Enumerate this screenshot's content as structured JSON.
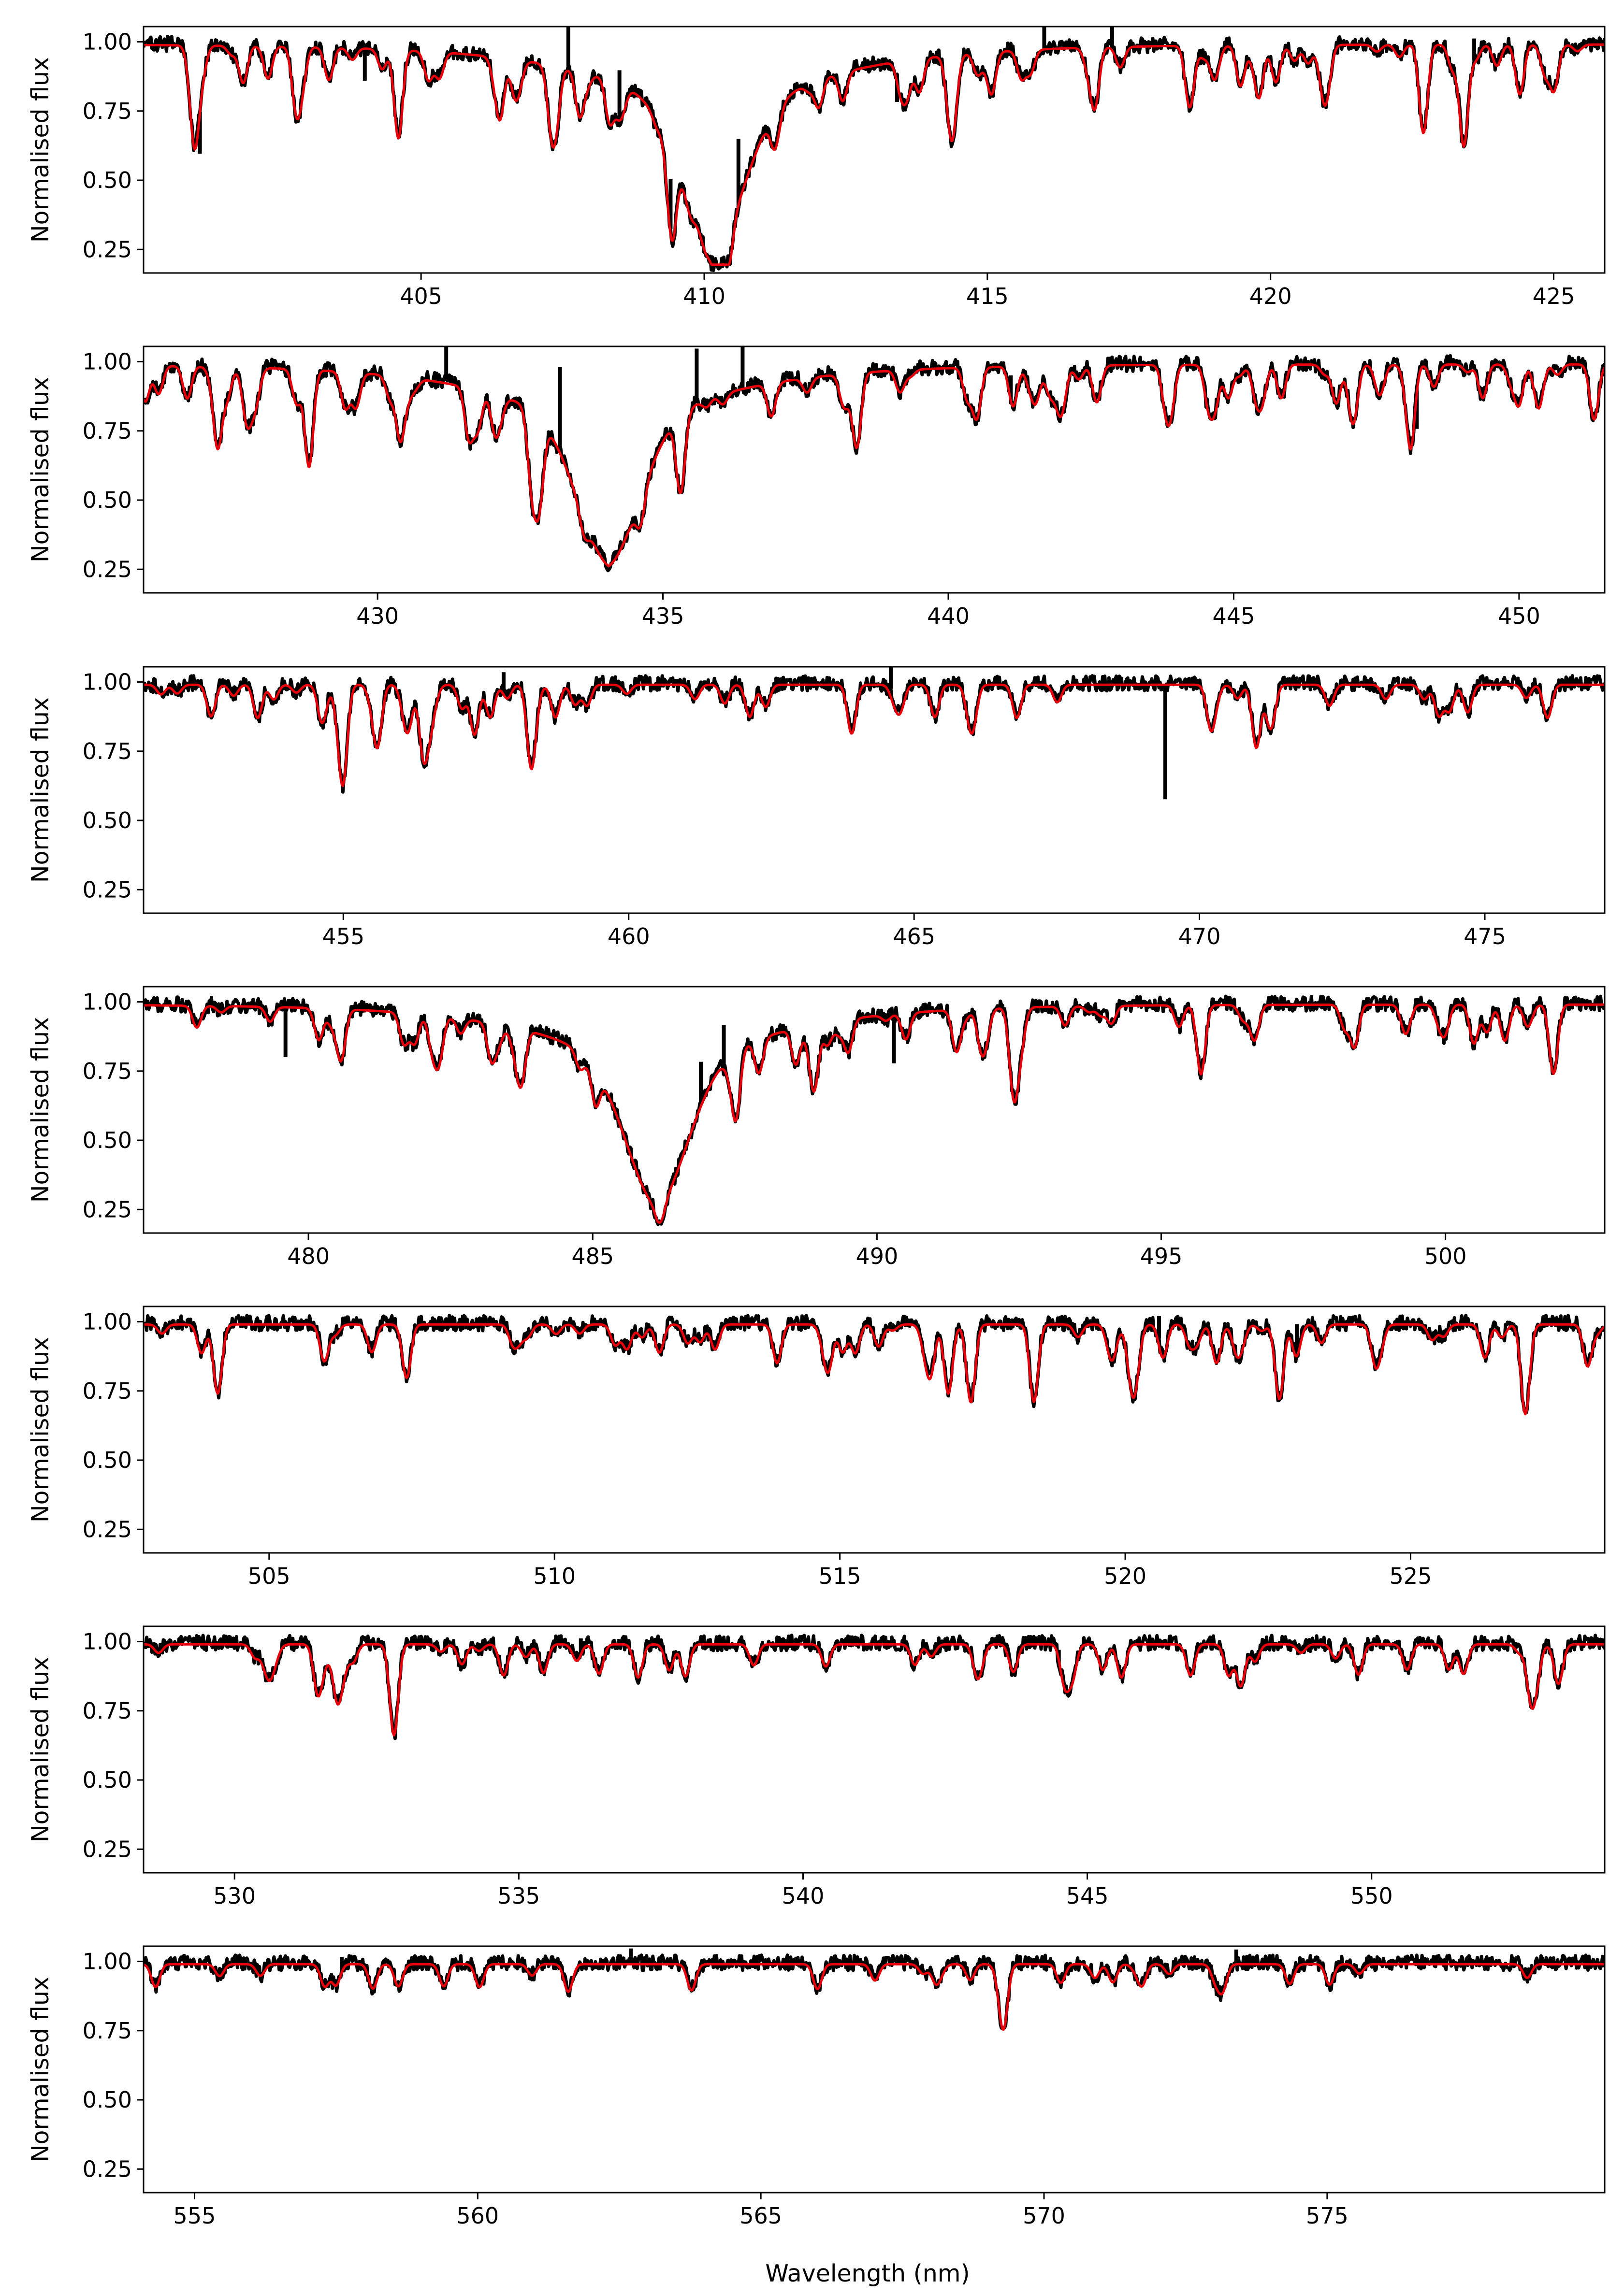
{
  "figure": {
    "xlabel": "Wavelength (nm)",
    "ylabel": "Normalised flux",
    "observed_color": "#000000",
    "model_color": "#e8000b"
  },
  "chart_data": [
    {
      "type": "line",
      "xlim": [
        400.1,
        425.9
      ],
      "ylim": [
        0.165,
        1.055
      ],
      "xticks": [
        405,
        410,
        415,
        420,
        425
      ],
      "yticks": [
        0.25,
        0.5,
        0.75,
        1.0
      ],
      "ylabel": "Normalised flux",
      "xlabel": "",
      "series": [
        {
          "color": "#000000",
          "width": 7,
          "role": "observed"
        },
        {
          "color": "#e8000b",
          "width": 5,
          "role": "model"
        }
      ],
      "balmer": {
        "center": 410.17,
        "depth": 0.78,
        "width": 0.55,
        "wing": 0.32,
        "wing_width": 3.6
      },
      "lines": [
        [
          401.0,
          0.22
        ],
        [
          402.8,
          0.17
        ],
        [
          404.6,
          0.32
        ],
        [
          406.4,
          0.2
        ],
        [
          407.8,
          0.16
        ],
        [
          413.8,
          0.12
        ],
        [
          414.4,
          0.2
        ],
        [
          415.6,
          0.1
        ],
        [
          416.9,
          0.12
        ],
        [
          418.6,
          0.1
        ],
        [
          419.8,
          0.18
        ],
        [
          421.0,
          0.14
        ],
        [
          422.7,
          0.32
        ],
        [
          423.4,
          0.15
        ],
        [
          424.4,
          0.18
        ],
        [
          425.0,
          0.14
        ]
      ],
      "spikes": [
        [
          401.1,
          0.15
        ],
        [
          404.0,
          0.1
        ],
        [
          407.6,
          -0.25
        ],
        [
          408.5,
          -0.2
        ],
        [
          409.4,
          -0.18
        ],
        [
          410.6,
          -0.25
        ],
        [
          413.4,
          0.1
        ],
        [
          416.0,
          -0.15
        ],
        [
          417.2,
          -0.12
        ],
        [
          423.6,
          -0.08
        ]
      ],
      "density": 1.0,
      "seed": 11
    },
    {
      "type": "line",
      "xlim": [
        425.9,
        451.5
      ],
      "ylim": [
        0.165,
        1.055
      ],
      "xticks": [
        430,
        435,
        440,
        445,
        450
      ],
      "yticks": [
        0.25,
        0.5,
        0.75,
        1.0
      ],
      "ylabel": "Normalised flux",
      "xlabel": "",
      "series": [
        {
          "color": "#000000",
          "width": 7,
          "role": "observed"
        },
        {
          "color": "#e8000b",
          "width": 5,
          "role": "model"
        }
      ],
      "balmer": {
        "center": 434.05,
        "depth": 0.78,
        "width": 0.55,
        "wing": 0.3,
        "wing_width": 3.5
      },
      "lines": [
        [
          427.2,
          0.28
        ],
        [
          428.8,
          0.35
        ],
        [
          430.4,
          0.22
        ],
        [
          431.6,
          0.18
        ],
        [
          432.7,
          0.25
        ],
        [
          435.3,
          0.22
        ],
        [
          436.9,
          0.12
        ],
        [
          438.4,
          0.26
        ],
        [
          440.5,
          0.18
        ],
        [
          442.0,
          0.12
        ],
        [
          443.9,
          0.14
        ],
        [
          445.5,
          0.12
        ],
        [
          446.8,
          0.14
        ],
        [
          448.1,
          0.3
        ],
        [
          450.0,
          0.14
        ]
      ],
      "spikes": [
        [
          431.2,
          -0.2
        ],
        [
          433.2,
          -0.28
        ],
        [
          435.6,
          -0.18
        ],
        [
          436.4,
          -0.16
        ],
        [
          441.1,
          -0.1
        ],
        [
          448.2,
          0.15
        ]
      ],
      "density": 0.9,
      "seed": 22
    },
    {
      "type": "line",
      "xlim": [
        451.5,
        477.1
      ],
      "ylim": [
        0.165,
        1.055
      ],
      "xticks": [
        455,
        460,
        465,
        470,
        475
      ],
      "yticks": [
        0.25,
        0.5,
        0.75,
        1.0
      ],
      "ylabel": "Normalised flux",
      "xlabel": "",
      "series": [
        {
          "color": "#000000",
          "width": 7,
          "role": "observed"
        },
        {
          "color": "#e8000b",
          "width": 5,
          "role": "model"
        }
      ],
      "balmer": null,
      "lines": [
        [
          453.5,
          0.12
        ],
        [
          455.0,
          0.32
        ],
        [
          455.6,
          0.15
        ],
        [
          456.4,
          0.12
        ],
        [
          457.3,
          0.18
        ],
        [
          458.3,
          0.18
        ],
        [
          462.4,
          0.08
        ],
        [
          463.9,
          0.1
        ],
        [
          466.8,
          0.12
        ],
        [
          470.2,
          0.15
        ],
        [
          474.7,
          0.1
        ],
        [
          476.1,
          0.12
        ]
      ],
      "spikes": [
        [
          469.4,
          0.4
        ],
        [
          457.8,
          -0.08
        ],
        [
          464.6,
          -0.08
        ]
      ],
      "density": 0.7,
      "seed": 33
    },
    {
      "type": "line",
      "xlim": [
        477.1,
        502.8
      ],
      "ylim": [
        0.165,
        1.055
      ],
      "xticks": [
        480,
        485,
        490,
        495,
        500
      ],
      "yticks": [
        0.25,
        0.5,
        0.75,
        1.0
      ],
      "ylabel": "Normalised flux",
      "xlabel": "",
      "series": [
        {
          "color": "#000000",
          "width": 7,
          "role": "observed"
        },
        {
          "color": "#e8000b",
          "width": 5,
          "role": "model"
        }
      ],
      "balmer": {
        "center": 486.13,
        "depth": 0.76,
        "width": 0.55,
        "wing": 0.32,
        "wing_width": 3.4
      },
      "lines": [
        [
          480.6,
          0.08
        ],
        [
          482.3,
          0.15
        ],
        [
          487.5,
          0.12
        ],
        [
          488.9,
          0.22
        ],
        [
          491.4,
          0.15
        ],
        [
          492.4,
          0.2
        ],
        [
          495.7,
          0.25
        ],
        [
          498.4,
          0.15
        ],
        [
          500.5,
          0.14
        ],
        [
          501.9,
          0.25
        ]
      ],
      "spikes": [
        [
          479.6,
          0.18
        ],
        [
          486.9,
          -0.15
        ],
        [
          487.3,
          -0.18
        ],
        [
          490.3,
          0.18
        ]
      ],
      "density": 0.75,
      "seed": 44
    },
    {
      "type": "line",
      "xlim": [
        502.8,
        528.4
      ],
      "ylim": [
        0.165,
        1.055
      ],
      "xticks": [
        505,
        510,
        515,
        520,
        525
      ],
      "yticks": [
        0.25,
        0.5,
        0.75,
        1.0
      ],
      "ylabel": "Normalised flux",
      "xlabel": "",
      "series": [
        {
          "color": "#000000",
          "width": 7,
          "role": "observed"
        },
        {
          "color": "#e8000b",
          "width": 5,
          "role": "model"
        }
      ],
      "balmer": null,
      "lines": [
        [
          504.1,
          0.2
        ],
        [
          506.8,
          0.1
        ],
        [
          513.9,
          0.14
        ],
        [
          516.9,
          0.25
        ],
        [
          517.3,
          0.25
        ],
        [
          518.4,
          0.28
        ],
        [
          520.2,
          0.12
        ],
        [
          521.6,
          0.14
        ],
        [
          522.7,
          0.27
        ],
        [
          526.3,
          0.12
        ],
        [
          527.0,
          0.22
        ],
        [
          528.1,
          0.15
        ]
      ],
      "spikes": [
        [
          508.4,
          -0.05
        ],
        [
          520.6,
          -0.08
        ],
        [
          523.0,
          -0.1
        ]
      ],
      "density": 0.75,
      "seed": 55
    },
    {
      "type": "line",
      "xlim": [
        528.4,
        554.1
      ],
      "ylim": [
        0.165,
        1.055
      ],
      "xticks": [
        530,
        535,
        540,
        545,
        550
      ],
      "yticks": [
        0.25,
        0.5,
        0.75,
        1.0
      ],
      "ylabel": "Normalised flux",
      "xlabel": "",
      "series": [
        {
          "color": "#000000",
          "width": 7,
          "role": "observed"
        },
        {
          "color": "#e8000b",
          "width": 5,
          "role": "model"
        }
      ],
      "balmer": null,
      "lines": [
        [
          531.8,
          0.18
        ],
        [
          532.8,
          0.24
        ],
        [
          537.1,
          0.12
        ],
        [
          540.4,
          0.08
        ],
        [
          543.7,
          0.1
        ],
        [
          544.6,
          0.14
        ],
        [
          545.6,
          0.12
        ],
        [
          547.7,
          0.15
        ],
        [
          552.8,
          0.12
        ],
        [
          553.3,
          0.1
        ]
      ],
      "spikes": [
        [
          536.1,
          -0.05
        ],
        [
          544.5,
          -0.06
        ]
      ],
      "density": 0.6,
      "seed": 66
    },
    {
      "type": "line",
      "xlim": [
        554.1,
        579.9
      ],
      "ylim": [
        0.165,
        1.055
      ],
      "xticks": [
        555,
        560,
        565,
        570,
        575
      ],
      "yticks": [
        0.25,
        0.5,
        0.75,
        1.0
      ],
      "ylabel": "Normalised flux",
      "xlabel": "Wavelength (nm)",
      "series": [
        {
          "color": "#000000",
          "width": 7,
          "role": "observed"
        },
        {
          "color": "#e8000b",
          "width": 5,
          "role": "model"
        }
      ],
      "balmer": null,
      "lines": [
        [
          557.3,
          0.08
        ],
        [
          558.6,
          0.08
        ],
        [
          559.4,
          0.08
        ],
        [
          561.6,
          0.1
        ],
        [
          566.0,
          0.09
        ],
        [
          570.9,
          0.05
        ]
      ],
      "spikes": [
        [
          557.6,
          -0.04
        ],
        [
          562.7,
          -0.05
        ],
        [
          573.4,
          -0.04
        ]
      ],
      "density": 0.4,
      "seed": 77
    }
  ]
}
